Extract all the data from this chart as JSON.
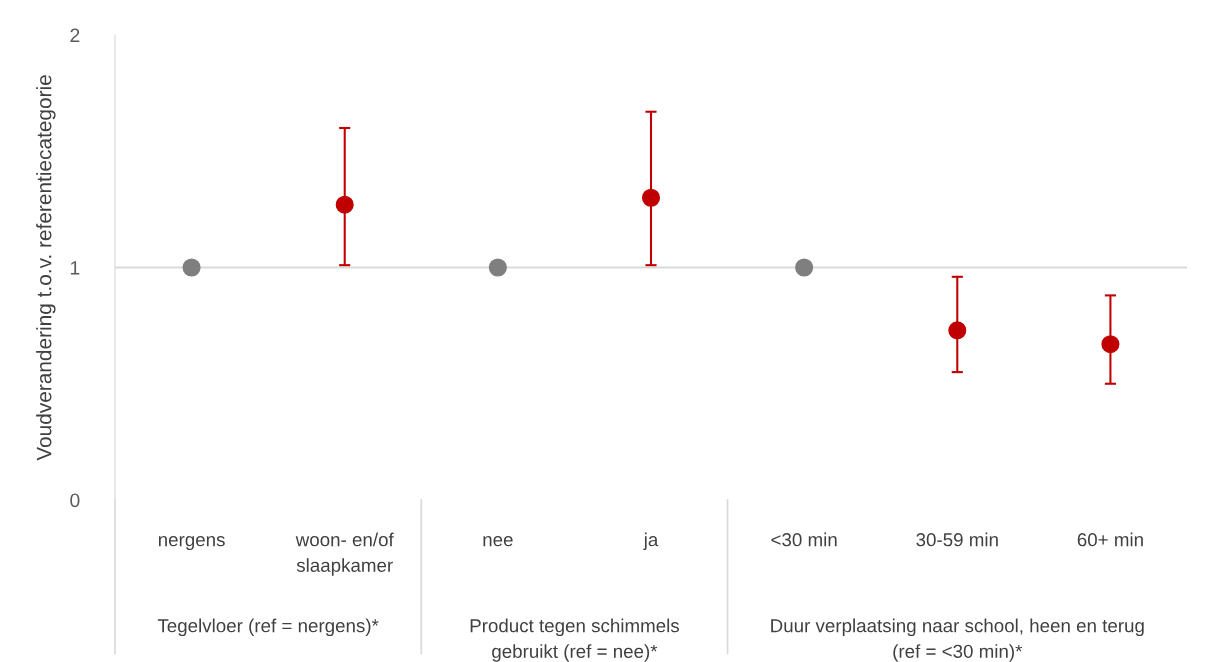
{
  "chart_data": {
    "type": "scatter",
    "ylabel": "Voudverandering t.o.v. referentiecategorie",
    "categories": [
      "nergens",
      "woon- en/of slaapkamer",
      "nee",
      "ja",
      "<30 min",
      "30-59 min",
      "60+ min"
    ],
    "values": [
      1,
      1.27,
      1,
      1.3,
      1,
      0.73,
      0.67
    ],
    "errors": [
      null,
      [
        1.01,
        1.6
      ],
      null,
      [
        1.01,
        1.67
      ],
      null,
      [
        0.55,
        0.96
      ],
      [
        0.5,
        0.88
      ]
    ],
    "colors": [
      "#7f7f7f",
      "#c00000",
      "#7f7f7f",
      "#c00000",
      "#7f7f7f",
      "#c00000",
      "#c00000"
    ],
    "ylim": [
      0,
      2
    ],
    "yticks": [
      0,
      1,
      2
    ],
    "marker": "circle",
    "grid": false,
    "legend": false,
    "ref_lines": [
      {
        "axis": "y",
        "value": 1,
        "color": "#d9d9d9"
      }
    ],
    "annotations": [
      "Tegelvloer (ref = nergens)*",
      "Product tegen schimmels gebruikt (ref = nee)*",
      "Duur verplaatsing naar school, heen en terug (ref = <30 min)*"
    ]
  }
}
